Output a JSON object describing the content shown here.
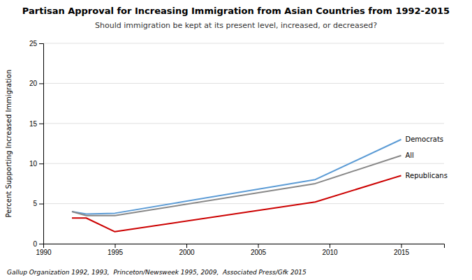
{
  "chart_data": {
    "type": "line",
    "title": "Partisan Approval for Increasing Immigration from Asian Countries from 1992-2015",
    "subtitle": "Should immigration be kept at its present level, increased, or decreased?",
    "footnote": "Gallup Organization 1992, 1993,  Princeton/Newsweek 1995, 2009,  Associated Press/Gfk 2015",
    "ylabel": "Percent Supporting Increased Immigration",
    "x": [
      1992,
      1993,
      1995,
      2009,
      2015
    ],
    "series": [
      {
        "name": "Democrats",
        "color": "#5B9BD5",
        "values": [
          4.0,
          3.7,
          3.8,
          8.0,
          13.0
        ]
      },
      {
        "name": "All",
        "color": "#888888",
        "values": [
          4.0,
          3.5,
          3.5,
          7.5,
          11.0
        ]
      },
      {
        "name": "Republicans",
        "color": "#CC0000",
        "values": [
          3.2,
          3.2,
          1.5,
          5.2,
          8.5
        ]
      }
    ],
    "xlim": [
      1990,
      2018
    ],
    "xticks": [
      1990,
      1995,
      2000,
      2005,
      2010,
      2015
    ],
    "ylim": [
      0,
      25
    ],
    "yticks": [
      0,
      5,
      10,
      15,
      20,
      25
    ],
    "grid": true
  }
}
